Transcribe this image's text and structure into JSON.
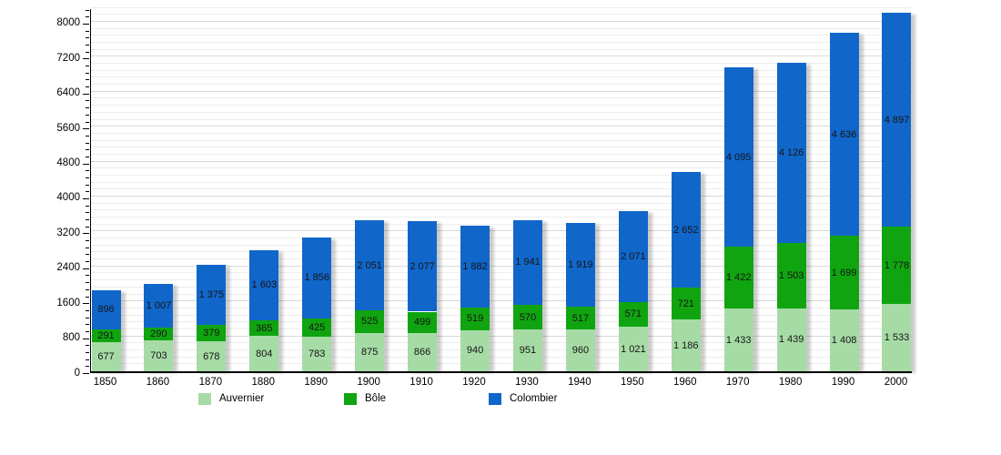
{
  "chart_data": {
    "type": "bar",
    "stacked": true,
    "title": "",
    "xlabel": "",
    "ylabel": "",
    "categories": [
      "1850",
      "1860",
      "1870",
      "1880",
      "1890",
      "1900",
      "1910",
      "1920",
      "1930",
      "1940",
      "1950",
      "1960",
      "1970",
      "1980",
      "1990",
      "2000"
    ],
    "series": [
      {
        "name": "Auvernier",
        "color": "#a6dba6",
        "values": [
          677,
          703,
          678,
          804,
          783,
          875,
          866,
          940,
          951,
          960,
          1021,
          1186,
          1433,
          1439,
          1408,
          1533
        ]
      },
      {
        "name": "Bôle",
        "color": "#10a510",
        "values": [
          291,
          290,
          379,
          365,
          425,
          525,
          499,
          519,
          570,
          517,
          571,
          721,
          1422,
          1503,
          1699,
          1778
        ]
      },
      {
        "name": "Colombier",
        "color": "#1166ca",
        "values": [
          896,
          1007,
          1375,
          1603,
          1856,
          2051,
          2077,
          1882,
          1941,
          1919,
          2071,
          2652,
          4095,
          4126,
          4636,
          4897
        ]
      }
    ],
    "ylim": [
      0,
      8333
    ],
    "ytick_interval": 800,
    "yticks": [
      0,
      800,
      1600,
      2400,
      3200,
      4000,
      4800,
      5600,
      6400,
      7200,
      8000
    ],
    "minor_tick_interval": 160,
    "grid": "horizontal",
    "legend_position": "bottom",
    "value_labels": "inside-segment-center",
    "thousands_separator": "space"
  },
  "colors": {
    "axis": "#000000",
    "grid_minor": "#ededed",
    "grid_major": "#d8d8d8",
    "value_label": "#151515",
    "background": "#ffffff"
  }
}
